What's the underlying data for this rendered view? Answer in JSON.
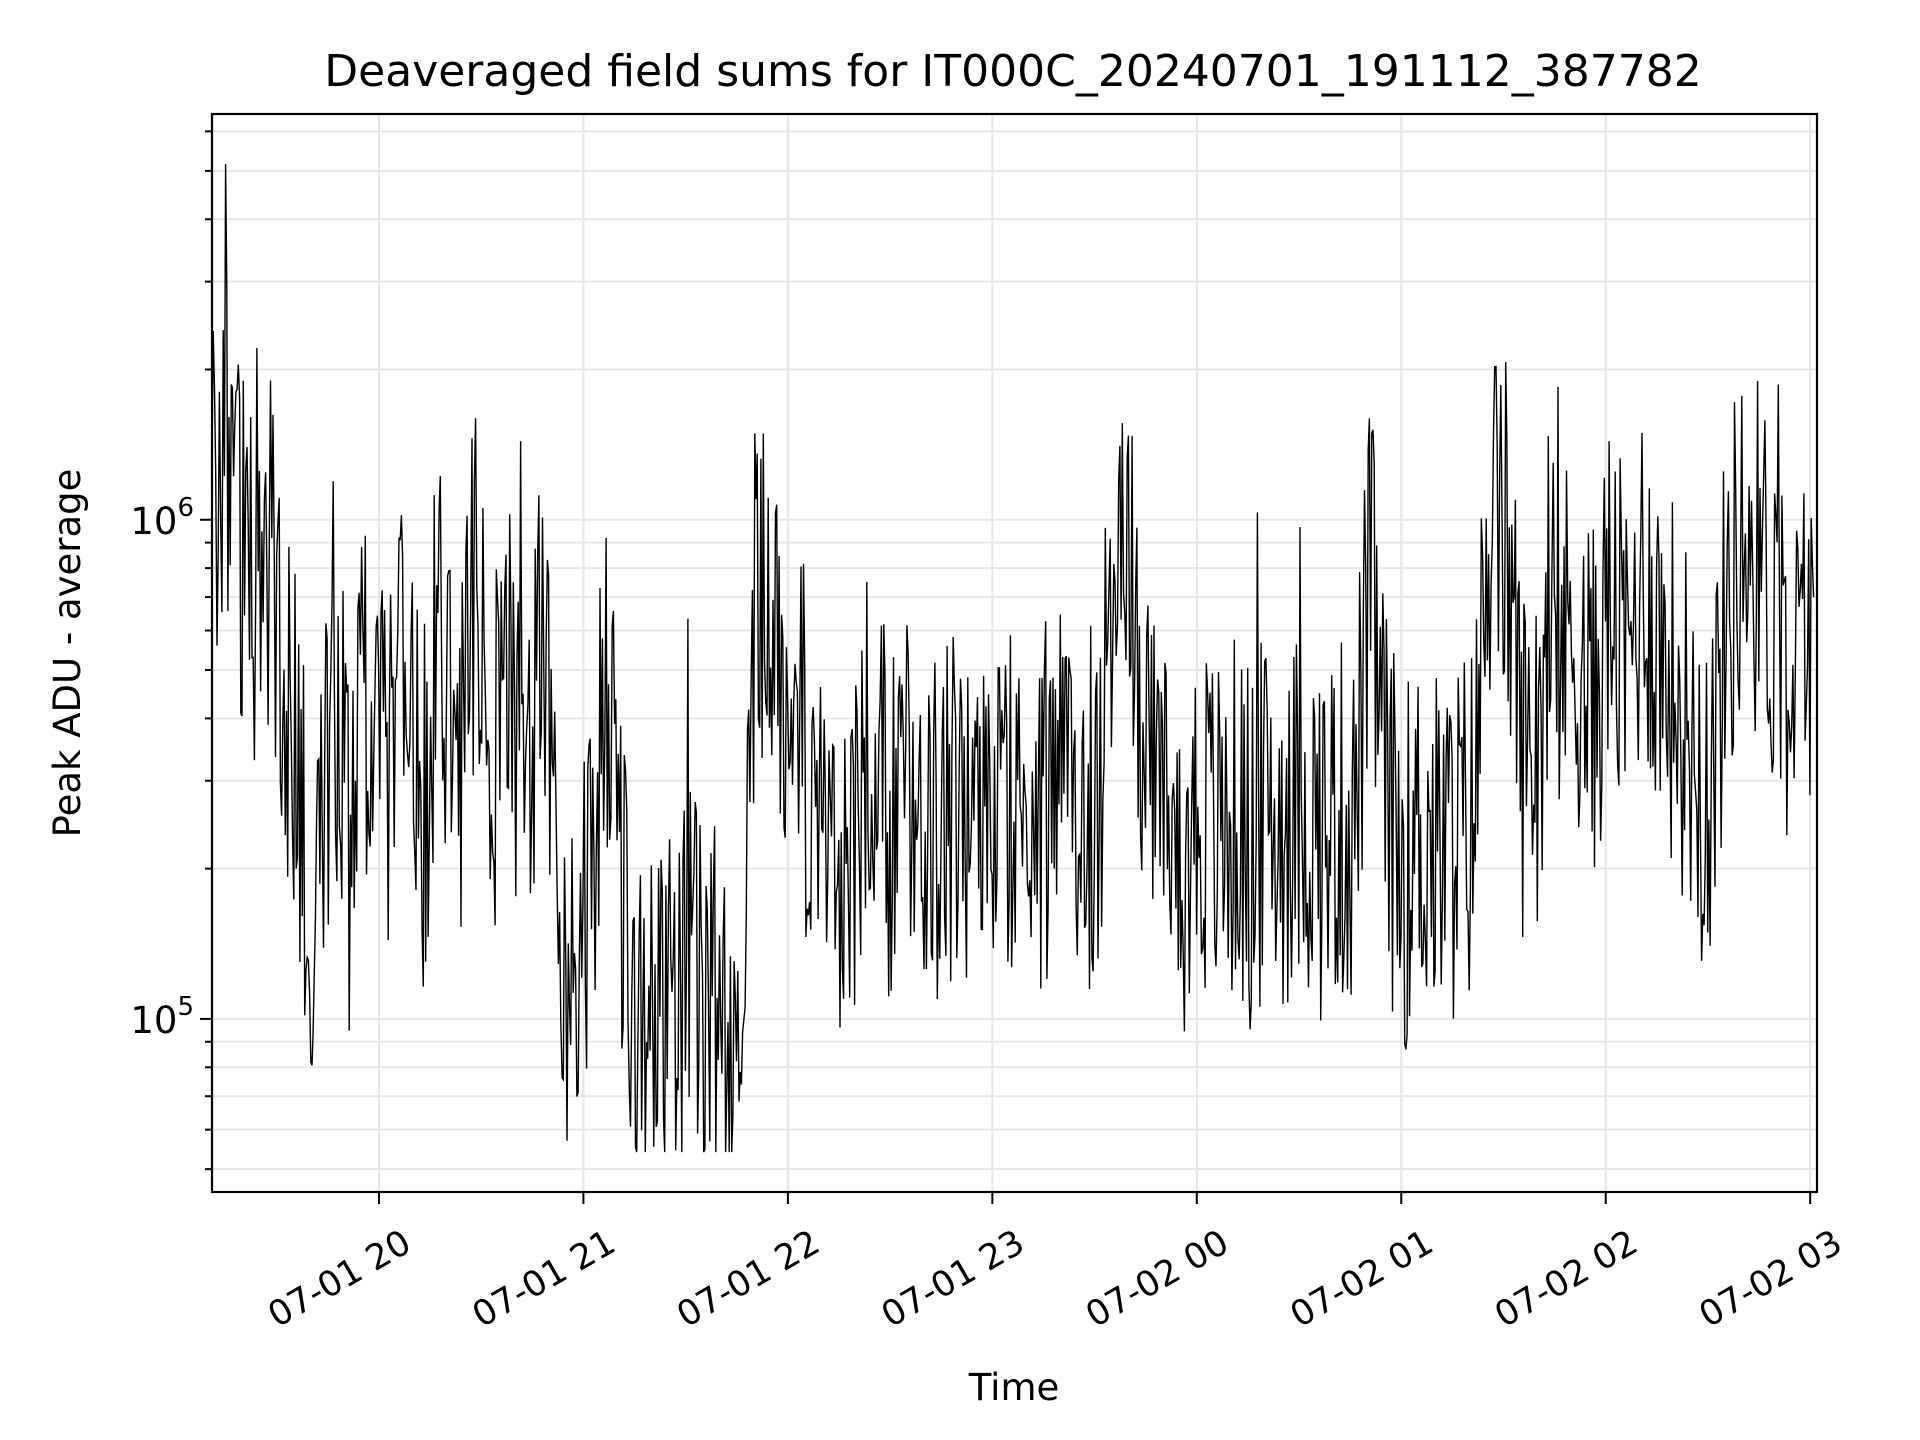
{
  "chart_data": {
    "type": "line",
    "title": "Deaveraged field sums for IT000C_20240701_191112_387782",
    "xlabel": "Time",
    "ylabel": "Peak ADU - average",
    "yscale": "log",
    "ylim": [
      45000,
      6500000
    ],
    "xlim": [
      "2024-07-01 19:11",
      "2024-07-02 03:02"
    ],
    "grid": true,
    "line_color": "#000000",
    "grid_color": "#e6e6e6",
    "xticks": [
      {
        "t": "2024-07-01 20:00",
        "label": "07-01 20"
      },
      {
        "t": "2024-07-01 21:00",
        "label": "07-01 21"
      },
      {
        "t": "2024-07-01 22:00",
        "label": "07-01 22"
      },
      {
        "t": "2024-07-01 23:00",
        "label": "07-01 23"
      },
      {
        "t": "2024-07-02 00:00",
        "label": "07-02 00"
      },
      {
        "t": "2024-07-02 01:00",
        "label": "07-02 01"
      },
      {
        "t": "2024-07-02 02:00",
        "label": "07-02 02"
      },
      {
        "t": "2024-07-02 03:00",
        "label": "07-02 03"
      }
    ],
    "yticks": [
      {
        "value": 100000,
        "base": "10",
        "exp": "5"
      },
      {
        "value": 1000000,
        "base": "10",
        "exp": "6"
      }
    ],
    "series": [
      {
        "points": [
          [
            "2024-07-01 19:11",
            1150000
          ],
          [
            "2024-07-01 19:15",
            1350000
          ],
          [
            "2024-07-01 19:18",
            1050000
          ],
          [
            "2024-07-01 19:22",
            780000
          ],
          [
            "2024-07-01 19:26",
            1100000
          ],
          [
            "2024-07-01 19:30",
            640000
          ],
          [
            "2024-07-01 19:35",
            350000
          ],
          [
            "2024-07-01 19:40",
            180000
          ],
          [
            "2024-07-01 19:43",
            270000
          ],
          [
            "2024-07-01 19:48",
            450000
          ],
          [
            "2024-07-01 19:52",
            320000
          ],
          [
            "2024-07-01 19:56",
            420000
          ],
          [
            "2024-07-01 20:02",
            300000
          ],
          [
            "2024-07-01 20:08",
            500000
          ],
          [
            "2024-07-01 20:13",
            220000
          ],
          [
            "2024-07-01 20:18",
            600000
          ],
          [
            "2024-07-01 20:23",
            250000
          ],
          [
            "2024-07-01 20:28",
            720000
          ],
          [
            "2024-07-01 20:33",
            330000
          ],
          [
            "2024-07-01 20:38",
            520000
          ],
          [
            "2024-07-01 20:43",
            230000
          ],
          [
            "2024-07-01 20:48",
            620000
          ],
          [
            "2024-07-01 20:53",
            170000
          ],
          [
            "2024-07-01 20:57",
            110000
          ],
          [
            "2024-07-01 21:02",
            210000
          ],
          [
            "2024-07-01 21:07",
            420000
          ],
          [
            "2024-07-01 21:12",
            150000
          ],
          [
            "2024-07-01 21:16",
            90000
          ],
          [
            "2024-07-01 21:21",
            130000
          ],
          [
            "2024-07-01 21:26",
            100000
          ],
          [
            "2024-07-01 21:31",
            140000
          ],
          [
            "2024-07-01 21:36",
            95000
          ],
          [
            "2024-07-01 21:41",
            115000
          ],
          [
            "2024-07-01 21:46",
            130000
          ],
          [
            "2024-07-01 21:51",
            820000
          ],
          [
            "2024-07-01 21:56",
            600000
          ],
          [
            "2024-07-01 22:01",
            450000
          ],
          [
            "2024-07-01 22:06",
            330000
          ],
          [
            "2024-07-01 22:11",
            230000
          ],
          [
            "2024-07-01 22:16",
            200000
          ],
          [
            "2024-07-01 22:21",
            250000
          ],
          [
            "2024-07-01 22:26",
            280000
          ],
          [
            "2024-07-01 22:31",
            240000
          ],
          [
            "2024-07-01 22:36",
            300000
          ],
          [
            "2024-07-01 22:41",
            230000
          ],
          [
            "2024-07-01 22:46",
            270000
          ],
          [
            "2024-07-01 22:51",
            250000
          ],
          [
            "2024-07-01 22:56",
            290000
          ],
          [
            "2024-07-01 23:01",
            260000
          ],
          [
            "2024-07-01 23:06",
            300000
          ],
          [
            "2024-07-01 23:11",
            240000
          ],
          [
            "2024-07-01 23:16",
            270000
          ],
          [
            "2024-07-01 23:21",
            300000
          ],
          [
            "2024-07-01 23:26",
            250000
          ],
          [
            "2024-07-01 23:31",
            280000
          ],
          [
            "2024-07-01 23:36",
            900000
          ],
          [
            "2024-07-01 23:41",
            700000
          ],
          [
            "2024-07-01 23:46",
            300000
          ],
          [
            "2024-07-01 23:51",
            250000
          ],
          [
            "2024-07-01 23:56",
            220000
          ],
          [
            "2024-07-02 00:01",
            260000
          ],
          [
            "2024-07-02 00:06",
            230000
          ],
          [
            "2024-07-02 00:11",
            250000
          ],
          [
            "2024-07-02 00:16",
            220000
          ],
          [
            "2024-07-02 00:21",
            260000
          ],
          [
            "2024-07-02 00:26",
            240000
          ],
          [
            "2024-07-02 00:31",
            270000
          ],
          [
            "2024-07-02 00:36",
            230000
          ],
          [
            "2024-07-02 00:41",
            250000
          ],
          [
            "2024-07-02 00:46",
            240000
          ],
          [
            "2024-07-02 00:51",
            780000
          ],
          [
            "2024-07-02 00:56",
            260000
          ],
          [
            "2024-07-02 01:01",
            200000
          ],
          [
            "2024-07-02 01:06",
            240000
          ],
          [
            "2024-07-02 01:11",
            210000
          ],
          [
            "2024-07-02 01:16",
            230000
          ],
          [
            "2024-07-02 01:21",
            250000
          ],
          [
            "2024-07-02 01:26",
            1000000
          ],
          [
            "2024-07-02 01:31",
            900000
          ],
          [
            "2024-07-02 01:36",
            320000
          ],
          [
            "2024-07-02 01:41",
            450000
          ],
          [
            "2024-07-02 01:46",
            550000
          ],
          [
            "2024-07-02 01:51",
            600000
          ],
          [
            "2024-07-02 01:56",
            400000
          ],
          [
            "2024-07-02 02:01",
            700000
          ],
          [
            "2024-07-02 02:06",
            500000
          ],
          [
            "2024-07-02 02:11",
            800000
          ],
          [
            "2024-07-02 02:16",
            550000
          ],
          [
            "2024-07-02 02:21",
            450000
          ],
          [
            "2024-07-02 02:26",
            350000
          ],
          [
            "2024-07-02 02:31",
            300000
          ],
          [
            "2024-07-02 02:36",
            700000
          ],
          [
            "2024-07-02 02:41",
            950000
          ],
          [
            "2024-07-02 02:46",
            800000
          ],
          [
            "2024-07-02 02:51",
            600000
          ],
          [
            "2024-07-02 02:56",
            500000
          ],
          [
            "2024-07-02 03:01",
            700000
          ]
        ]
      }
    ]
  }
}
